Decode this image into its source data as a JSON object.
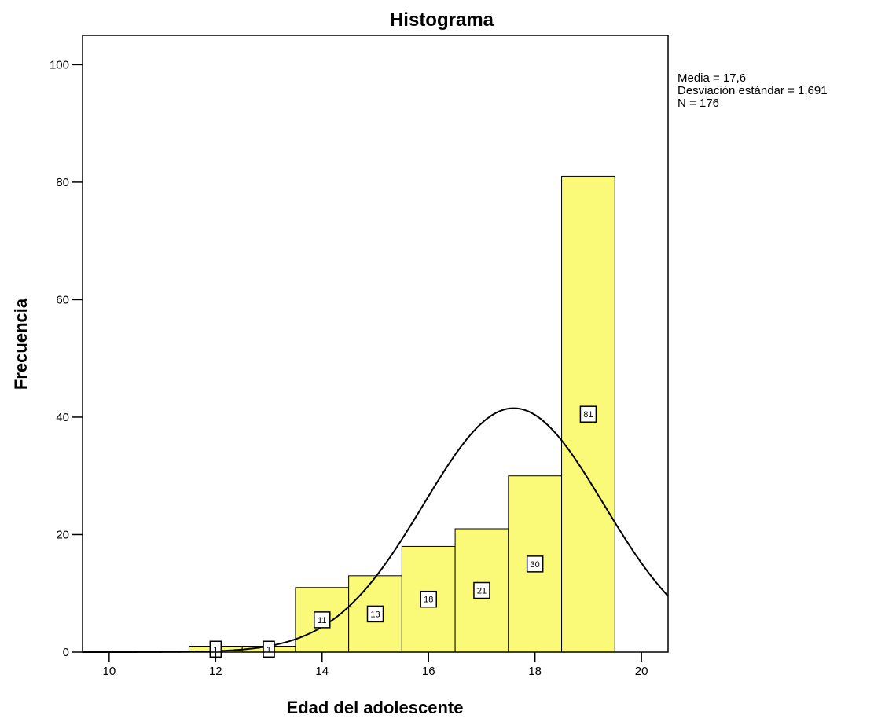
{
  "chart_data": {
    "type": "bar",
    "title": "Histograma",
    "xlabel": "Edad del adolescente",
    "ylabel": "Frecuencia",
    "x": [
      12,
      13,
      14,
      15,
      16,
      17,
      18,
      19
    ],
    "values": [
      1,
      1,
      11,
      13,
      18,
      21,
      30,
      81
    ],
    "data_labels": [
      "1",
      "1",
      "11",
      "13",
      "18",
      "21",
      "30",
      "81"
    ],
    "xlim": [
      9.5,
      20.5
    ],
    "ylim": [
      0,
      105
    ],
    "xticks": [
      10,
      12,
      14,
      16,
      18,
      20
    ],
    "xtick_labels": [
      "10",
      "12",
      "14",
      "16",
      "18",
      "20"
    ],
    "yticks": [
      0,
      20,
      40,
      60,
      80,
      100
    ],
    "ytick_labels": [
      "0",
      "20",
      "40",
      "60",
      "80",
      "100"
    ],
    "grid": false,
    "bar_color": "#fafa78",
    "normal_curve": {
      "mean": 17.6,
      "sd": 1.691,
      "n": 176,
      "bin_width": 1
    },
    "stats": {
      "mean": "Media = 17,6",
      "sd": "Desviación estándar = 1,691",
      "n": "N = 176"
    }
  }
}
